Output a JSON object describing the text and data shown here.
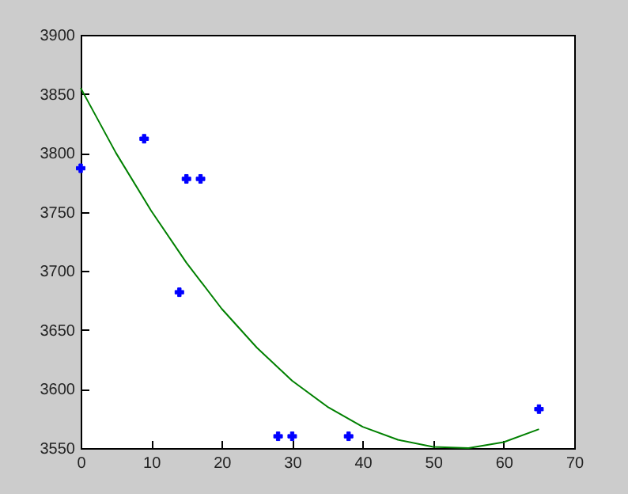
{
  "chart_data": {
    "type": "scatter",
    "marker": "cross",
    "grid": false,
    "xlim": [
      0,
      70
    ],
    "xticks": [
      0,
      10,
      20,
      30,
      40,
      50,
      60,
      70
    ],
    "ylim": [
      3550,
      3900
    ],
    "yticks": [
      3550,
      3600,
      3650,
      3700,
      3750,
      3800,
      3850,
      3900
    ],
    "series": [
      {
        "color": "#0000ff",
        "x": [
          0,
          9,
          14,
          15,
          17,
          28,
          30,
          38,
          65
        ],
        "values": [
          3787,
          3812,
          3682,
          3778,
          3778,
          3560,
          3560,
          3560,
          3583
        ]
      },
      {
        "type": "line",
        "color": "#008000",
        "marker": "none",
        "x": [
          0,
          5,
          10,
          15,
          20,
          25,
          30,
          35,
          40,
          45,
          50,
          55,
          60,
          65
        ],
        "values": [
          3855,
          3800,
          3751,
          3707,
          3668,
          3635,
          3607,
          3585,
          3568,
          3557,
          3551,
          3550,
          3555,
          3566
        ]
      }
    ]
  }
}
